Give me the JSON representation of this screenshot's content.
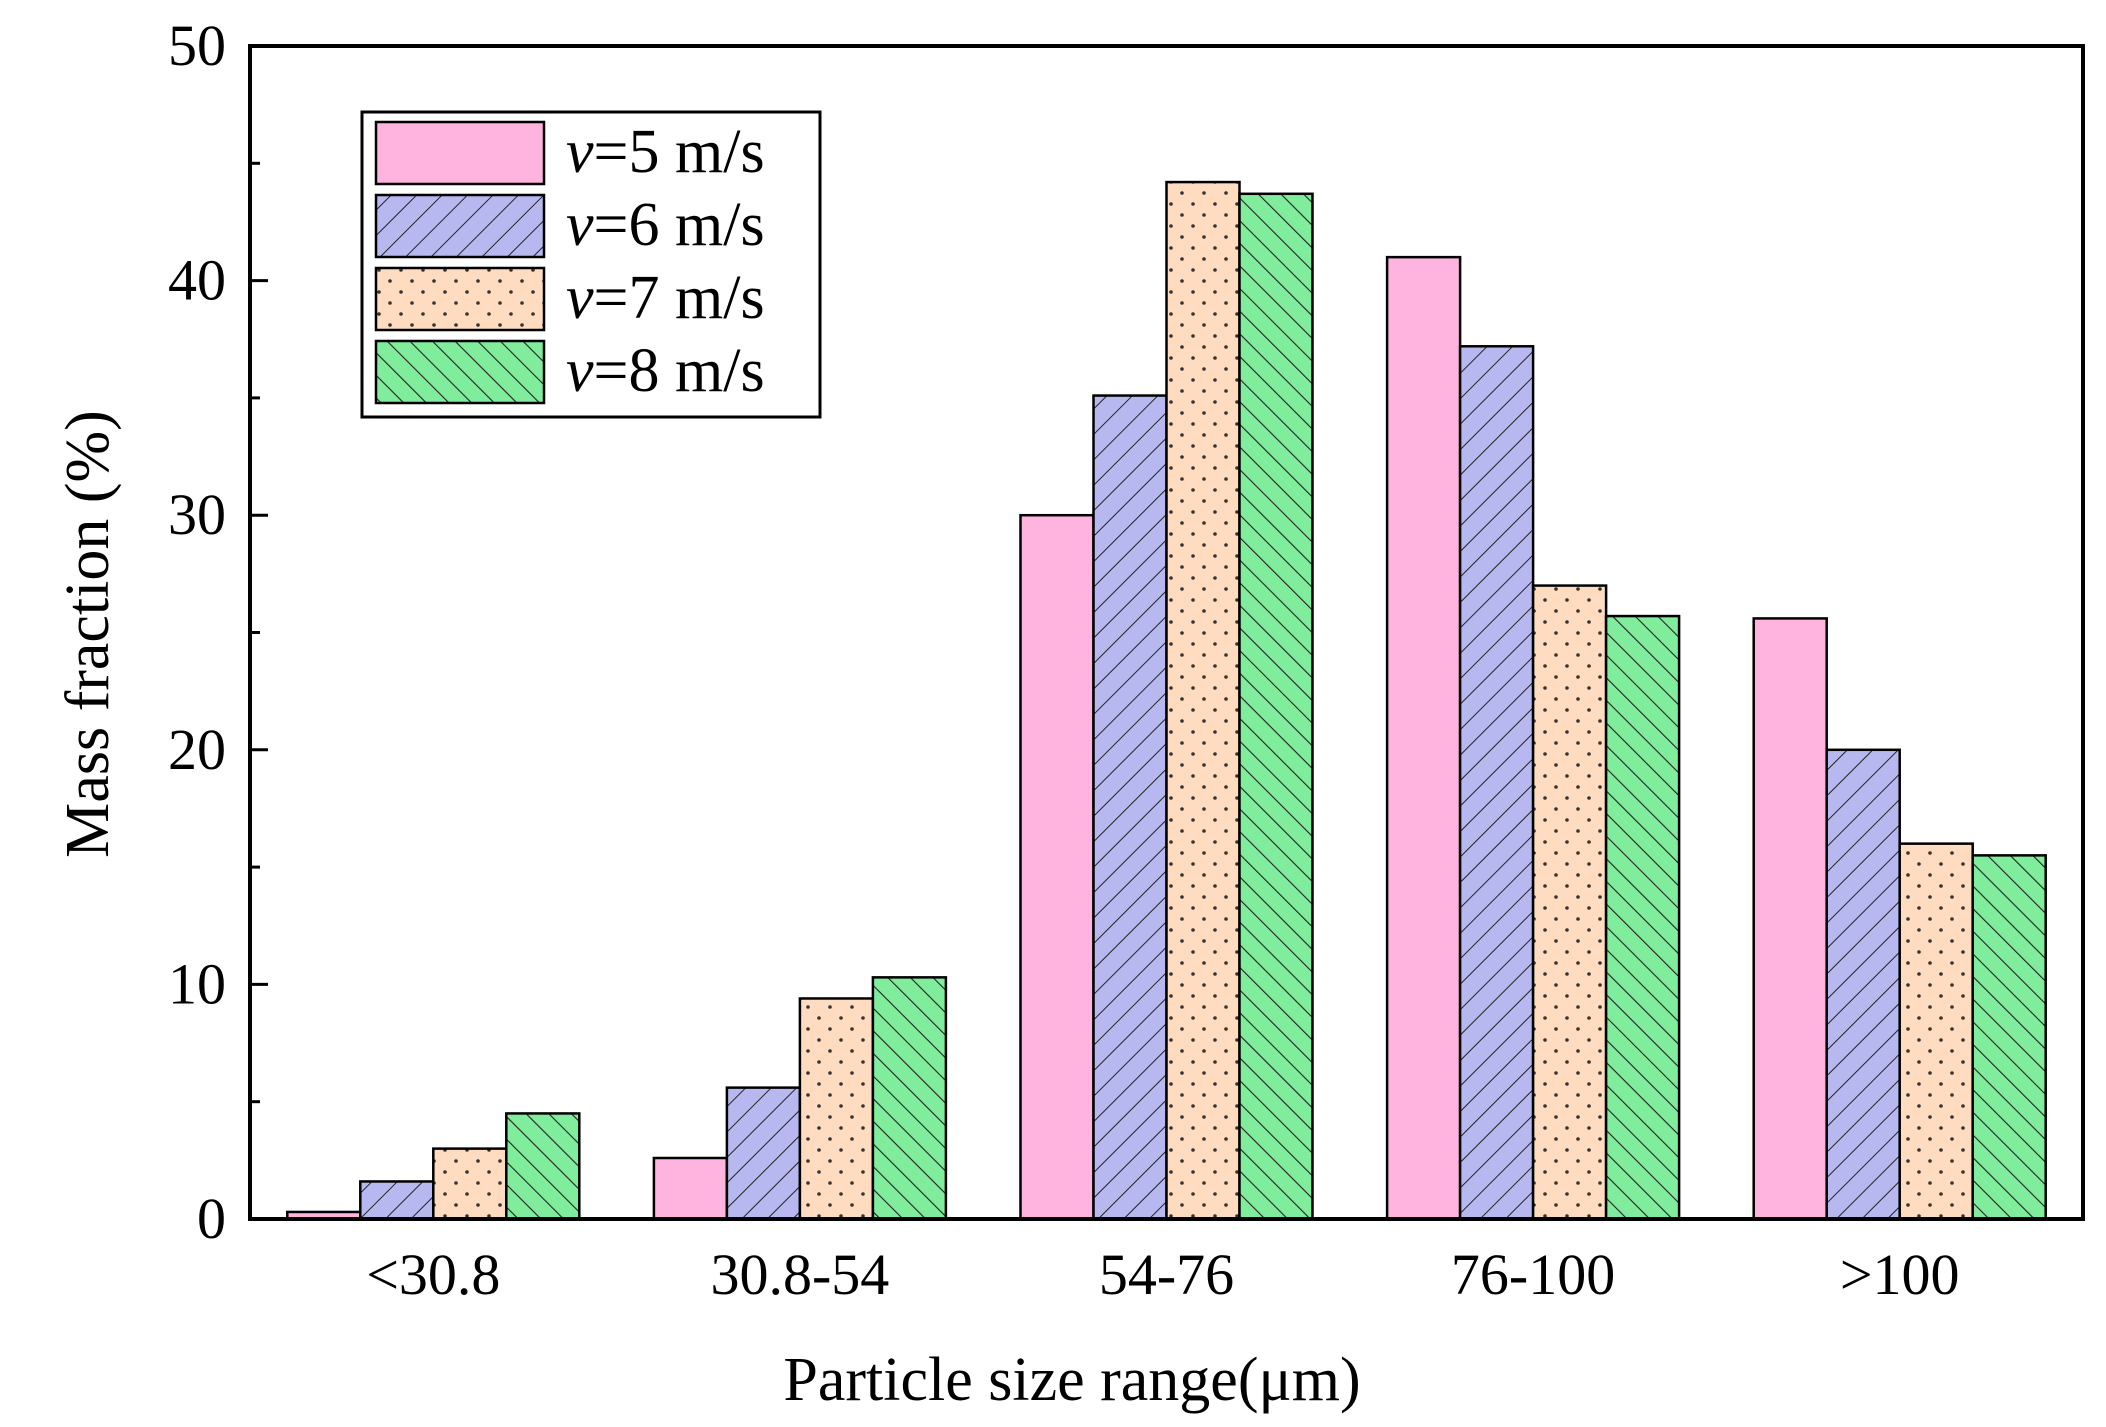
{
  "chart_data": {
    "type": "bar",
    "title": "",
    "xlabel": "Particle size range(μm)",
    "ylabel": "Mass fraction (%)",
    "ylim": [
      0,
      50
    ],
    "yticks": [
      0,
      10,
      20,
      30,
      40,
      50
    ],
    "categories": [
      "<30.8",
      "30.8-54",
      "54-76",
      "76-100",
      ">100"
    ],
    "series": [
      {
        "name": "v=5 m/s",
        "speed_symbol": "v",
        "speed_value": "=5 m/s",
        "color": "#ffb3df",
        "pattern": "solid",
        "values": [
          0.3,
          2.6,
          30.0,
          41.0,
          25.6
        ]
      },
      {
        "name": "v=6 m/s",
        "speed_symbol": "v",
        "speed_value": "=6 m/s",
        "color": "#b8b8f0",
        "pattern": "hatch-forward",
        "values": [
          1.6,
          5.6,
          35.1,
          37.2,
          20.0
        ]
      },
      {
        "name": "v=7 m/s",
        "speed_symbol": "v",
        "speed_value": "=7 m/s",
        "color": "#ffdcbf",
        "pattern": "dots",
        "values": [
          3.0,
          9.4,
          44.2,
          27.0,
          16.0
        ]
      },
      {
        "name": "v=8 m/s",
        "speed_symbol": "v",
        "speed_value": "=8 m/s",
        "color": "#80ed9c",
        "pattern": "hatch-back",
        "values": [
          4.5,
          10.3,
          43.7,
          25.7,
          15.5
        ]
      }
    ],
    "legend_position": "top-left",
    "grid": false
  }
}
